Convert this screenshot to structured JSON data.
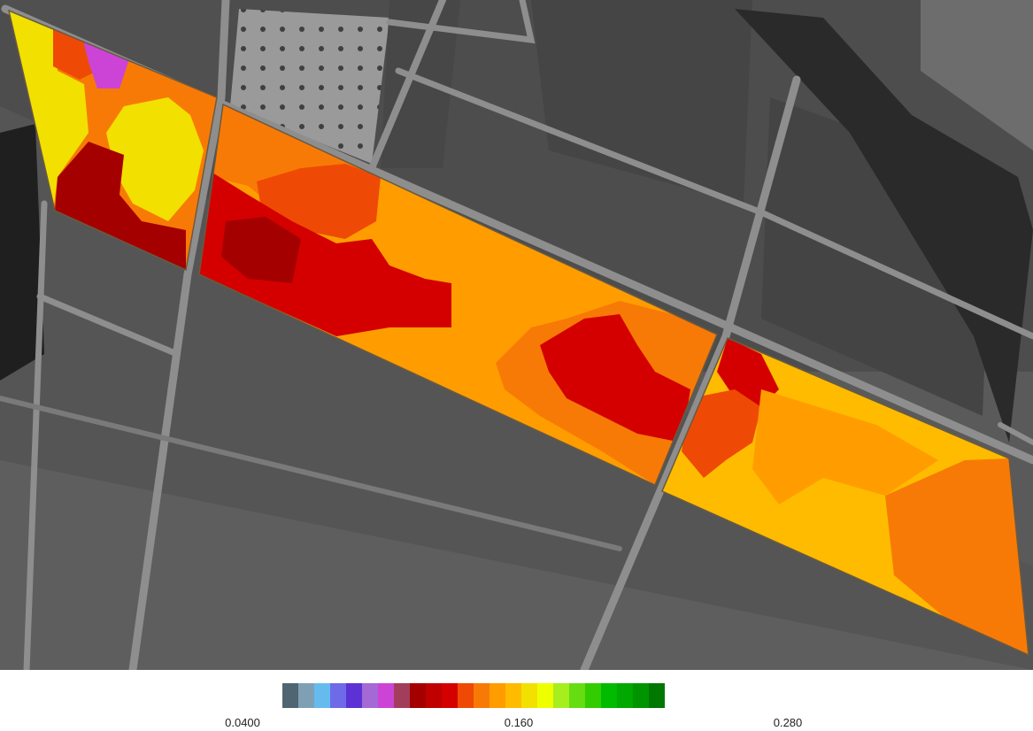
{
  "map": {
    "background": "grayscale-aerial",
    "zone_colors": {
      "dark_red": "#A50000",
      "red": "#D40000",
      "orange_red": "#EE4A05",
      "orange": "#F87A06",
      "light_orange": "#FF9D00",
      "amber": "#FFBB00",
      "yellow": "#F2E000",
      "magenta": "#CC44D6"
    }
  },
  "legend": {
    "colors": [
      "#4F6572",
      "#7FA0B4",
      "#66BBEE",
      "#6E6AE8",
      "#5C32D4",
      "#A469D4",
      "#CC44D6",
      "#A33D5C",
      "#A50000",
      "#C00000",
      "#D40000",
      "#EE4A05",
      "#F87A06",
      "#FF9D00",
      "#FFBB00",
      "#F2E000",
      "#EEFF00",
      "#A6EE1E",
      "#66DD11",
      "#33CC00",
      "#00BB00",
      "#00A800",
      "#009400",
      "#007700"
    ],
    "min_label": "0.0400",
    "mid_label": "0.160",
    "max_label": "0.280"
  }
}
